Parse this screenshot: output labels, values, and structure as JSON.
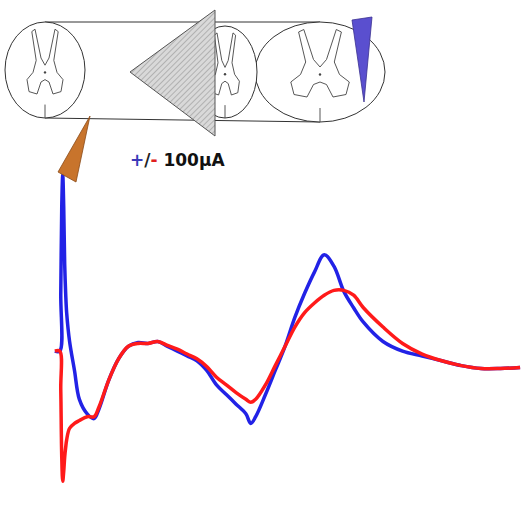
{
  "diagram": {
    "stimulus_label": {
      "plus": "+",
      "slash": "/",
      "minus": "-",
      "amount": " 100µA"
    }
  },
  "chart_data": {
    "type": "line",
    "tick_labels": false,
    "grid": false,
    "xlim": [
      0,
      485
    ],
    "ylim": [
      -170,
      190
    ],
    "x": [
      5,
      10,
      11,
      12,
      13,
      14,
      15,
      16,
      17,
      20,
      25,
      30,
      38,
      45,
      50,
      60,
      70,
      80,
      90,
      100,
      110,
      120,
      130,
      140,
      150,
      160,
      170,
      180,
      190,
      200,
      205,
      210,
      220,
      230,
      240,
      250,
      260,
      270,
      280,
      290,
      300,
      310,
      320,
      340,
      360,
      380,
      400,
      420,
      440,
      460,
      480
    ],
    "series": [
      {
        "color": "#2222e6",
        "values": [
          0,
          0,
          60,
          150,
          183,
          150,
          90,
          60,
          40,
          10,
          -20,
          -50,
          -65,
          -70,
          -60,
          -30,
          -8,
          5,
          9,
          8,
          10,
          5,
          0,
          -5,
          -10,
          -20,
          -35,
          -45,
          -55,
          -65,
          -75,
          -68,
          -45,
          -20,
          5,
          35,
          60,
          82,
          100,
          88,
          62,
          45,
          30,
          10,
          0,
          -5,
          -10,
          -15,
          -18,
          -18,
          -17
        ]
      },
      {
        "color": "#ff1a1a",
        "values": [
          0,
          0,
          -40,
          -110,
          -135,
          -125,
          -110,
          -100,
          -92,
          -80,
          -75,
          -72,
          -68,
          -68,
          -58,
          -30,
          -8,
          5,
          8,
          8,
          10,
          6,
          2,
          -3,
          -8,
          -16,
          -27,
          -35,
          -43,
          -50,
          -53,
          -50,
          -35,
          -15,
          5,
          25,
          40,
          50,
          58,
          63,
          63,
          58,
          45,
          25,
          8,
          -3,
          -10,
          -15,
          -18,
          -18,
          -17
        ]
      }
    ]
  }
}
